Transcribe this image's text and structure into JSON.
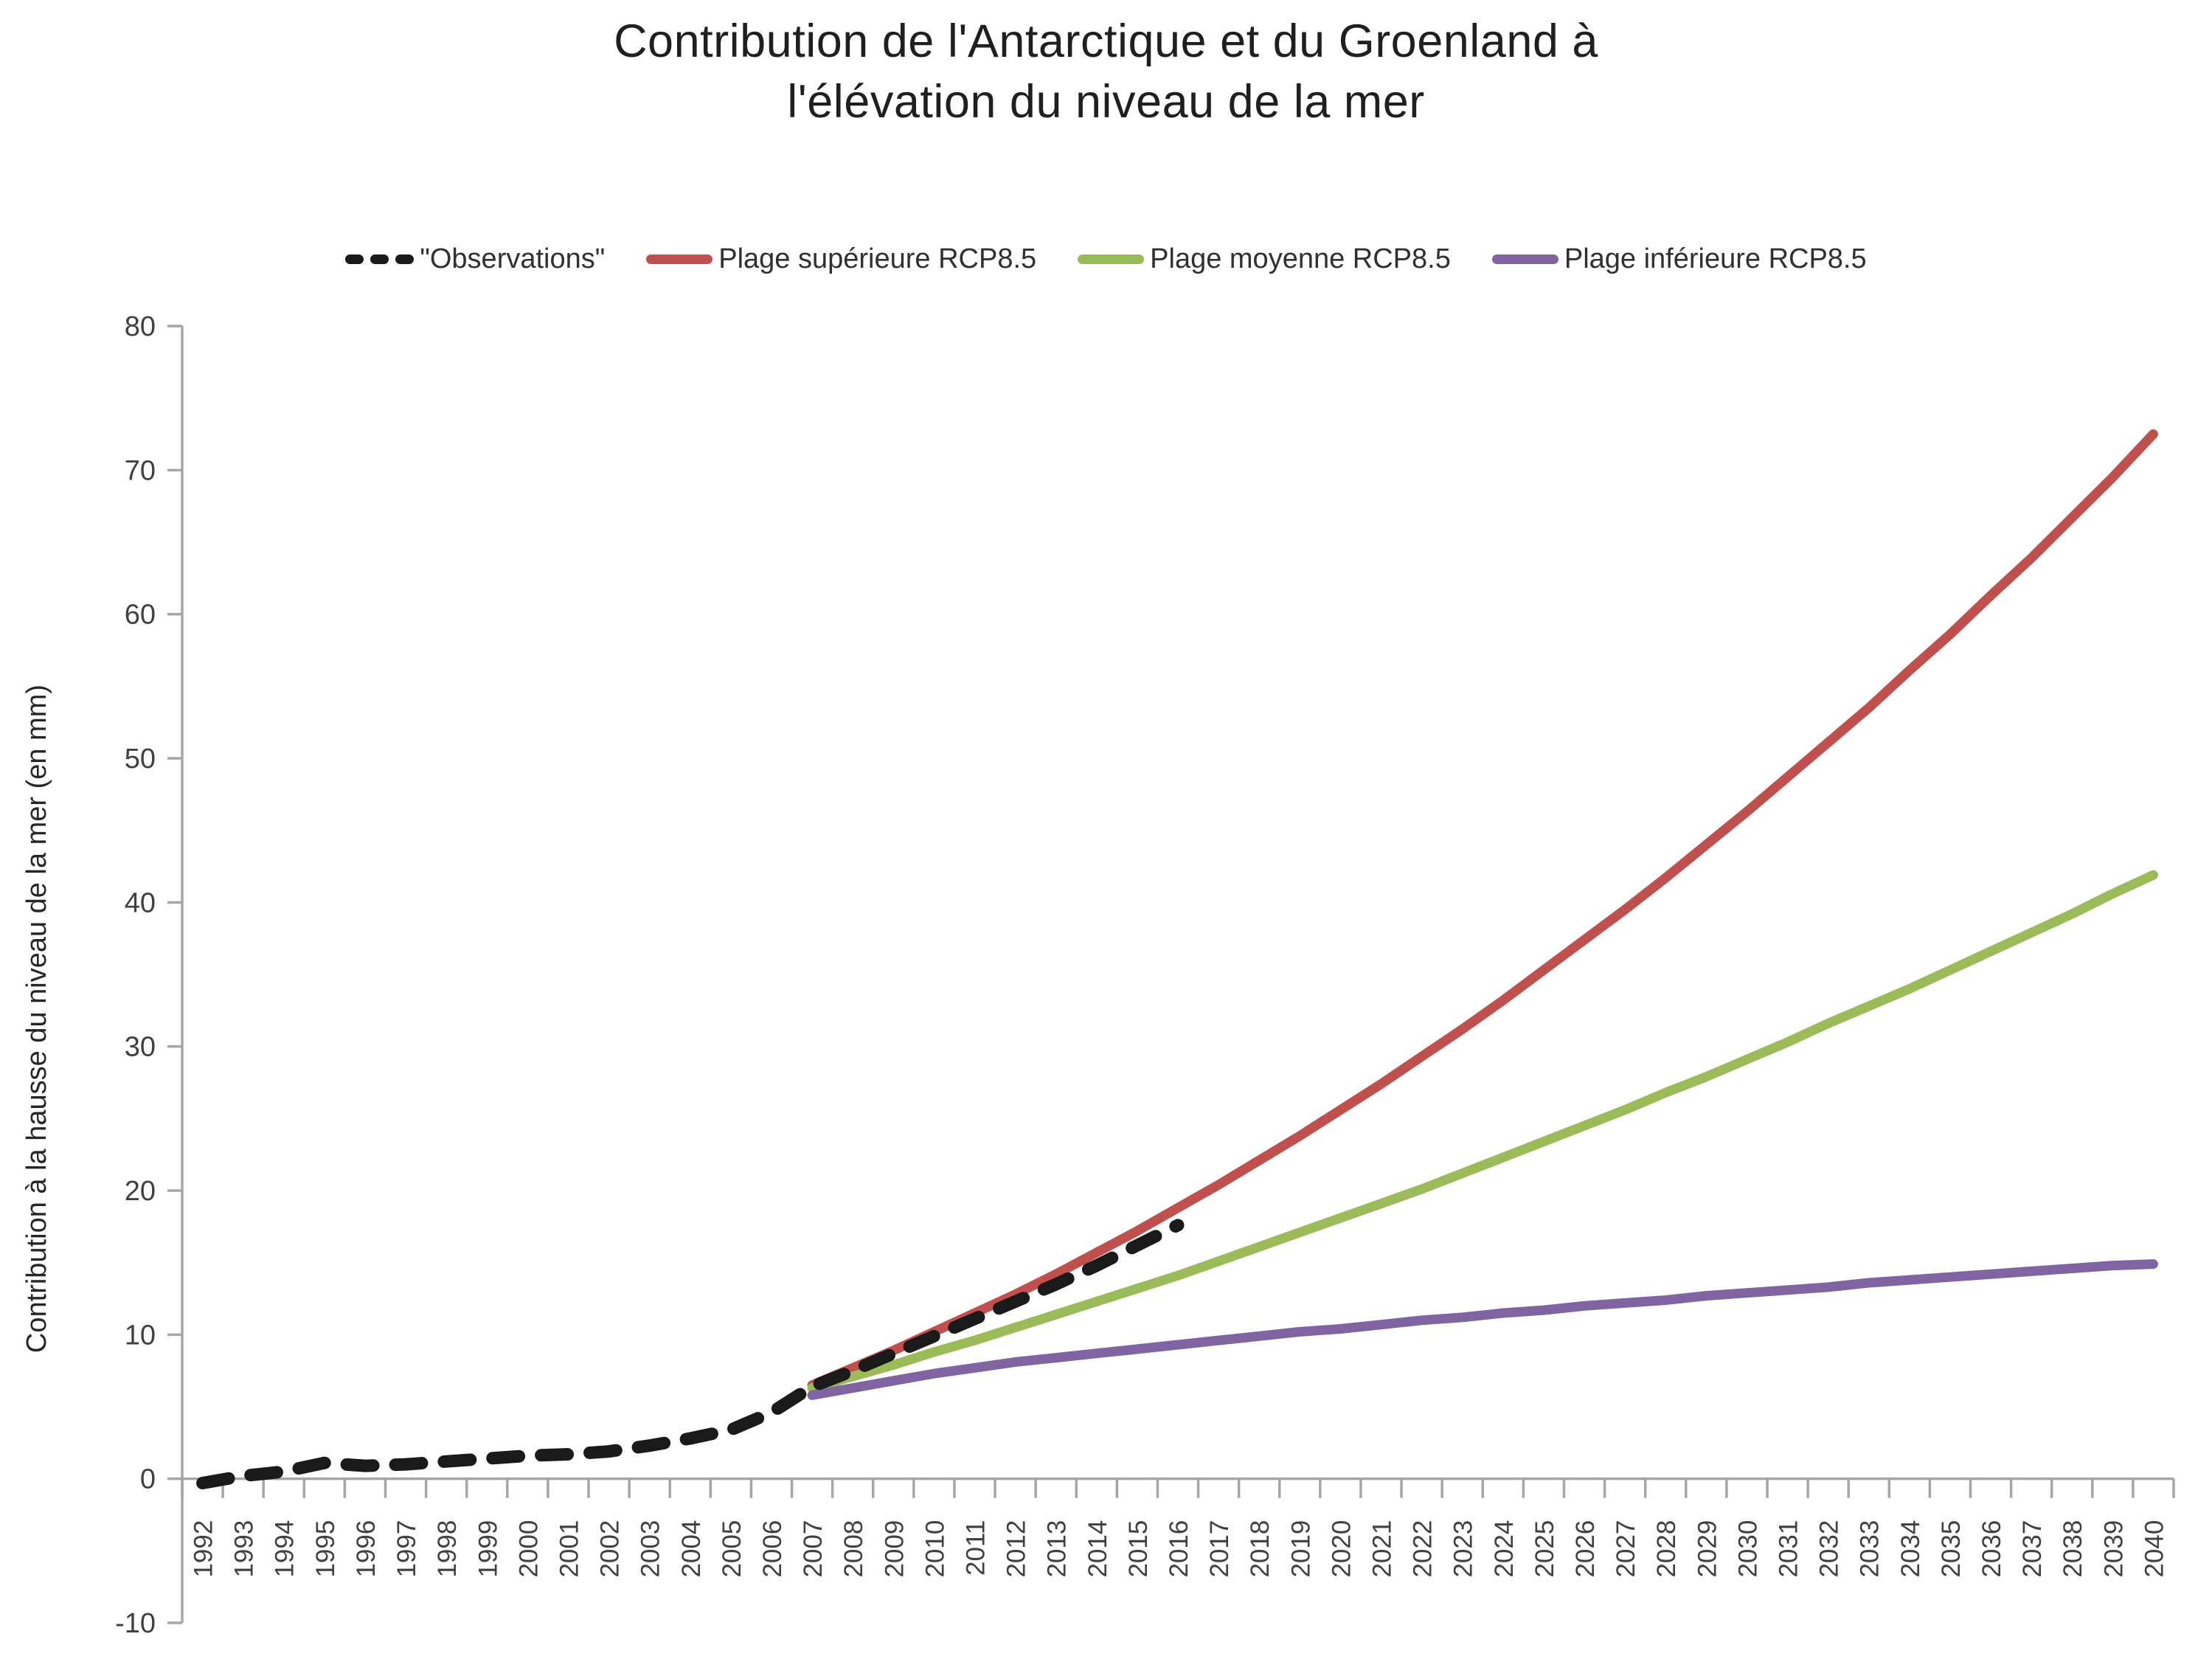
{
  "title": {
    "line1": "Contribution de l'Antarctique et du Groenland à",
    "line2": "l'élévation du niveau de la mer"
  },
  "legend": {
    "items": [
      {
        "label": "\"Observations\"",
        "color": "#1a1a1a",
        "style": "dashed"
      },
      {
        "label": "Plage supérieure RCP8.5",
        "color": "#c0504d",
        "style": "solid"
      },
      {
        "label": "Plage moyenne RCP8.5",
        "color": "#9bbb59",
        "style": "solid"
      },
      {
        "label": "Plage inférieure RCP8.5",
        "color": "#8064a2",
        "style": "solid"
      }
    ]
  },
  "y_axis": {
    "title": "Contribution à la hausse du niveau de la mer (en mm)",
    "ticks": [
      80,
      70,
      60,
      50,
      40,
      30,
      20,
      10,
      0,
      -10
    ]
  },
  "x_axis": {
    "years": [
      "1992",
      "1993",
      "1994",
      "1995",
      "1996",
      "1997",
      "1998",
      "1999",
      "2000",
      "2001",
      "2002",
      "2003",
      "2004",
      "2005",
      "2006",
      "2007",
      "2008",
      "2009",
      "2010",
      "2011",
      "2012",
      "2013",
      "2014",
      "2015",
      "2016",
      "2017",
      "2018",
      "2019",
      "2020",
      "2021",
      "2022",
      "2023",
      "2024",
      "2025",
      "2026",
      "2027",
      "2028",
      "2029",
      "2030",
      "2031",
      "2032",
      "2033",
      "2034",
      "2035",
      "2036",
      "2037",
      "2038",
      "2039",
      "2040"
    ]
  },
  "colors": {
    "axis": "#a6a6a6",
    "tick_label": "#404040"
  },
  "chart_data": {
    "type": "line",
    "title": "Contribution de l'Antarctique et du Groenland à l'élévation du niveau de la mer",
    "xlabel": "",
    "ylabel": "Contribution à la hausse du niveau de la mer (en mm)",
    "ylim": [
      -10,
      80
    ],
    "grid": false,
    "legend_position": "top",
    "categories": [
      1992,
      1993,
      1994,
      1995,
      1996,
      1997,
      1998,
      1999,
      2000,
      2001,
      2002,
      2003,
      2004,
      2005,
      2006,
      2007,
      2008,
      2009,
      2010,
      2011,
      2012,
      2013,
      2014,
      2015,
      2016,
      2017,
      2018,
      2019,
      2020,
      2021,
      2022,
      2023,
      2024,
      2025,
      2026,
      2027,
      2028,
      2029,
      2030,
      2031,
      2032,
      2033,
      2034,
      2035,
      2036,
      2037,
      2038,
      2039,
      2040
    ],
    "series": [
      {
        "name": "\"Observations\"",
        "color": "#1a1a1a",
        "dashed": true,
        "start_year": 1992,
        "values": [
          -0.3,
          0.2,
          0.5,
          1.1,
          0.9,
          1.0,
          1.2,
          1.4,
          1.6,
          1.7,
          1.9,
          2.3,
          2.8,
          3.4,
          4.6,
          6.4,
          7.5,
          8.7,
          9.9,
          11.1,
          12.3,
          13.5,
          14.8,
          16.2,
          17.6
        ]
      },
      {
        "name": "Plage supérieure RCP8.5",
        "color": "#c0504d",
        "dashed": false,
        "start_year": 2007,
        "values": [
          6.5,
          7.7,
          8.9,
          10.2,
          11.5,
          12.8,
          14.2,
          15.7,
          17.2,
          18.8,
          20.4,
          22.1,
          23.8,
          25.6,
          27.4,
          29.3,
          31.2,
          33.2,
          35.3,
          37.4,
          39.5,
          41.7,
          44.0,
          46.3,
          48.7,
          51.1,
          53.5,
          56.1,
          58.6,
          61.3,
          63.9,
          66.7,
          69.5,
          72.5
        ]
      },
      {
        "name": "Plage moyenne RCP8.5",
        "color": "#9bbb59",
        "dashed": false,
        "start_year": 2007,
        "values": [
          6.3,
          7.1,
          7.9,
          8.8,
          9.6,
          10.5,
          11.4,
          12.3,
          13.2,
          14.1,
          15.1,
          16.1,
          17.1,
          18.1,
          19.1,
          20.1,
          21.2,
          22.3,
          23.4,
          24.5,
          25.6,
          26.8,
          27.9,
          29.1,
          30.3,
          31.6,
          32.8,
          34.0,
          35.3,
          36.6,
          37.9,
          39.2,
          40.6,
          41.9
        ]
      },
      {
        "name": "Plage inférieure RCP8.5",
        "color": "#8064a2",
        "dashed": false,
        "start_year": 2007,
        "values": [
          5.8,
          6.3,
          6.8,
          7.3,
          7.7,
          8.1,
          8.4,
          8.7,
          9.0,
          9.3,
          9.6,
          9.9,
          10.2,
          10.4,
          10.7,
          11.0,
          11.2,
          11.5,
          11.7,
          12.0,
          12.2,
          12.4,
          12.7,
          12.9,
          13.1,
          13.3,
          13.6,
          13.8,
          14.0,
          14.2,
          14.4,
          14.6,
          14.8,
          14.9
        ]
      }
    ]
  }
}
